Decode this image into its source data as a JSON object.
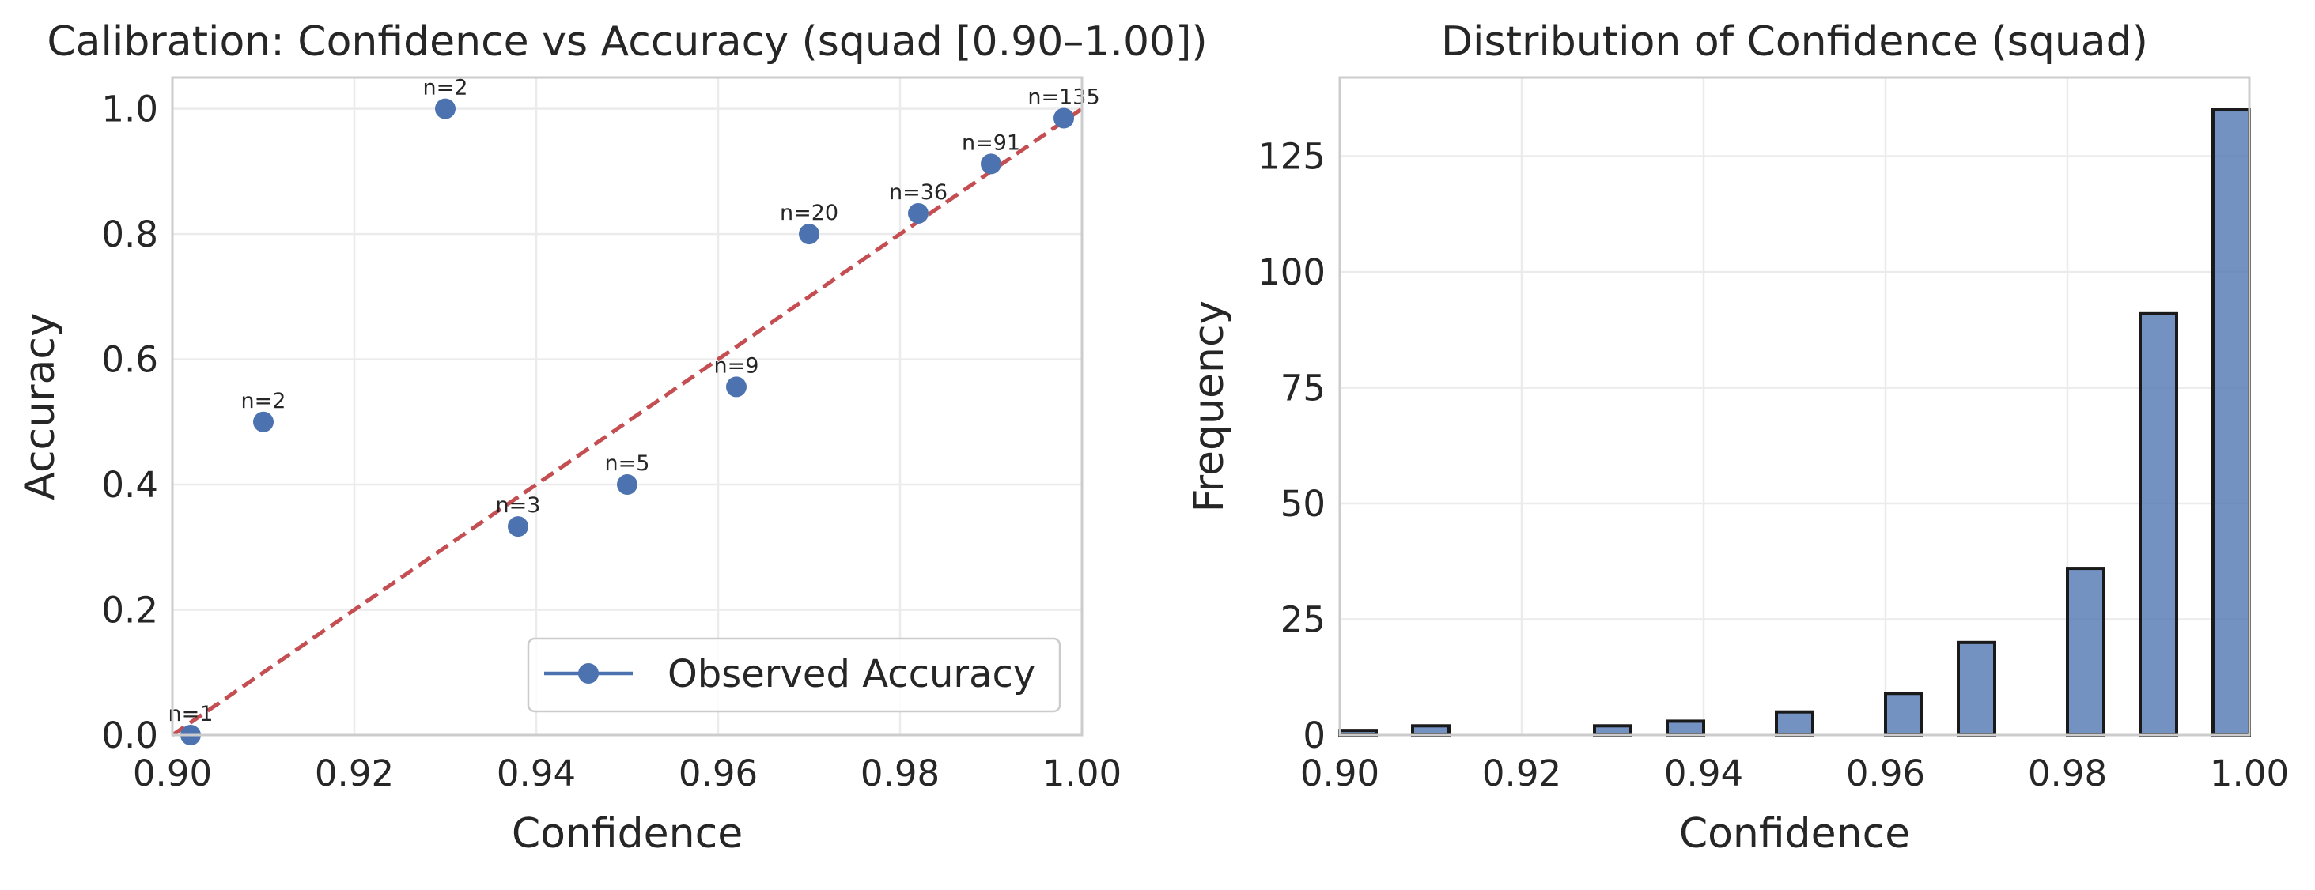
{
  "colors": {
    "point": "#4c72b0",
    "ideal_line": "#c44e52",
    "bar_fill": "#4c72b0",
    "bar_edge": "#1a1a1a",
    "grid": "#ebebeb",
    "spine": "#cccccc"
  },
  "chart_data": [
    {
      "type": "scatter",
      "title": "Calibration: Confidence vs Accuracy (squad [0.90–1.00])",
      "xlabel": "Confidence",
      "ylabel": "Accuracy",
      "xlim": [
        0.9,
        1.0
      ],
      "ylim": [
        0.0,
        1.05
      ],
      "xticks": [
        0.9,
        0.92,
        0.94,
        0.96,
        0.98,
        1.0
      ],
      "xtick_labels": [
        "0.90",
        "0.92",
        "0.94",
        "0.96",
        "0.98",
        "1.00"
      ],
      "yticks": [
        0.0,
        0.2,
        0.4,
        0.6,
        0.8,
        1.0
      ],
      "ytick_labels": [
        "0.0",
        "0.2",
        "0.4",
        "0.6",
        "0.8",
        "1.0"
      ],
      "grid": true,
      "legend_position": "bottom-right",
      "series": [
        {
          "name": "Observed Accuracy",
          "marker": "circle",
          "points": [
            {
              "x": 0.902,
              "y": 0.0,
              "label": "n=1"
            },
            {
              "x": 0.91,
              "y": 0.5,
              "label": "n=2"
            },
            {
              "x": 0.93,
              "y": 1.0,
              "label": "n=2"
            },
            {
              "x": 0.938,
              "y": 0.333,
              "label": "n=3"
            },
            {
              "x": 0.95,
              "y": 0.4,
              "label": "n=5"
            },
            {
              "x": 0.962,
              "y": 0.556,
              "label": "n=9"
            },
            {
              "x": 0.97,
              "y": 0.8,
              "label": "n=20"
            },
            {
              "x": 0.982,
              "y": 0.833,
              "label": "n=36"
            },
            {
              "x": 0.99,
              "y": 0.912,
              "label": "n=91"
            },
            {
              "x": 0.998,
              "y": 0.985,
              "label": "n=135"
            }
          ]
        }
      ],
      "reference_line": {
        "style": "dashed",
        "from": [
          0.9,
          0.0
        ],
        "to": [
          1.0,
          1.0
        ]
      }
    },
    {
      "type": "bar",
      "title": "Distribution of Confidence (squad)",
      "xlabel": "Confidence",
      "ylabel": "Frequency",
      "xlim": [
        0.9,
        1.0
      ],
      "ylim": [
        0,
        142
      ],
      "xticks": [
        0.9,
        0.92,
        0.94,
        0.96,
        0.98,
        1.0
      ],
      "xtick_labels": [
        "0.90",
        "0.92",
        "0.94",
        "0.96",
        "0.98",
        "1.00"
      ],
      "yticks": [
        0,
        25,
        50,
        75,
        100,
        125
      ],
      "ytick_labels": [
        "0",
        "25",
        "50",
        "75",
        "100",
        "125"
      ],
      "grid": true,
      "bar_width": 0.004,
      "bars": [
        {
          "x": 0.902,
          "value": 1
        },
        {
          "x": 0.91,
          "value": 2
        },
        {
          "x": 0.93,
          "value": 2
        },
        {
          "x": 0.938,
          "value": 3
        },
        {
          "x": 0.95,
          "value": 5
        },
        {
          "x": 0.962,
          "value": 9
        },
        {
          "x": 0.97,
          "value": 20
        },
        {
          "x": 0.982,
          "value": 36
        },
        {
          "x": 0.99,
          "value": 91
        },
        {
          "x": 0.998,
          "value": 135
        }
      ]
    }
  ]
}
